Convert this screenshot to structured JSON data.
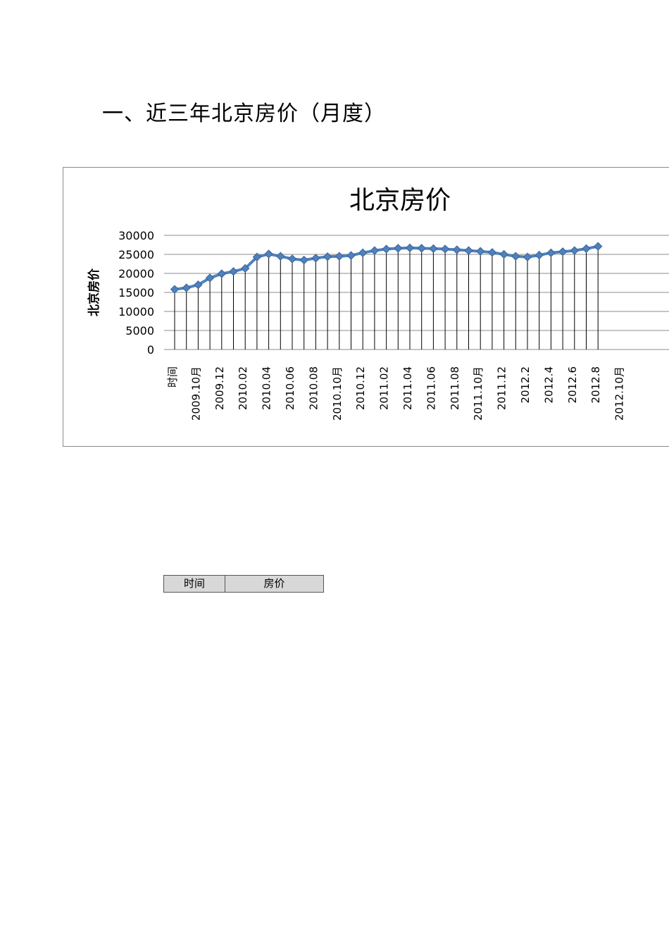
{
  "heading": "一、近三年北京房价（月度）",
  "table": {
    "col1": "时间",
    "col2": "房价"
  },
  "chart_data": {
    "type": "line",
    "title": "北京房价",
    "ylabel": "北京房价",
    "xlabel": "",
    "ylim": [
      0,
      30000
    ],
    "y_ticks": [
      0,
      5000,
      10000,
      15000,
      20000,
      25000,
      30000
    ],
    "grid": "horizontal gridlines",
    "legend": "none",
    "line_color": "#4f81bd",
    "marker": "diamond",
    "x_tick_labels": [
      "时间",
      "2009.10月",
      "2009.12",
      "2010.02",
      "2010.04",
      "2010.06",
      "2010.08",
      "2010.10月",
      "2010.12",
      "2011.02",
      "2011.04",
      "2011.06",
      "2011.08",
      "2011.10月",
      "2011.12",
      "2012.2",
      "2012.4",
      "2012.6",
      "2012.8",
      "2012.10月"
    ],
    "series": [
      {
        "values": [
          15800,
          16200,
          17000,
          18800,
          19900,
          20500,
          21300,
          24300,
          25100,
          24500,
          23800,
          23500,
          24000,
          24400,
          24500,
          24700,
          25400,
          26000,
          26400,
          26600,
          26700,
          26600,
          26500,
          26400,
          26200,
          26000,
          25800,
          25500,
          25000,
          24500,
          24300,
          24800,
          25400,
          25700,
          26000,
          26500,
          27100
        ]
      }
    ]
  }
}
